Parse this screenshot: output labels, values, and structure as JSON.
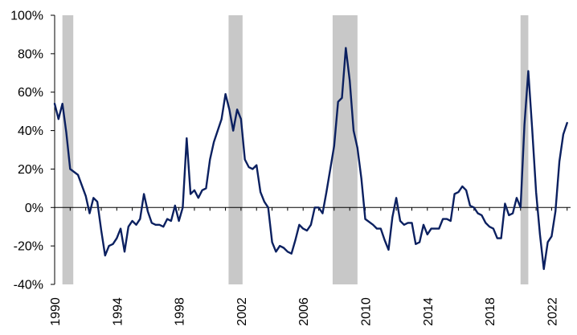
{
  "chart_data": {
    "type": "line",
    "title": "",
    "xlabel": "",
    "ylabel": "",
    "xlim": [
      1990,
      2023.5
    ],
    "ylim": [
      -40,
      100
    ],
    "grid": false,
    "legend": "none",
    "line_color": "#0b2060",
    "shade_color": "#c8c8c8",
    "y_ticks": [
      {
        "value": -40,
        "label": "-40%"
      },
      {
        "value": -20,
        "label": "-20%"
      },
      {
        "value": 0,
        "label": "0%"
      },
      {
        "value": 20,
        "label": "20%"
      },
      {
        "value": 40,
        "label": "40%"
      },
      {
        "value": 60,
        "label": "60%"
      },
      {
        "value": 80,
        "label": "80%"
      },
      {
        "value": 100,
        "label": "100%"
      }
    ],
    "x_ticks": [
      {
        "value": 1990,
        "label": "1990"
      },
      {
        "value": 1994,
        "label": "1994"
      },
      {
        "value": 1998,
        "label": "1998"
      },
      {
        "value": 2002,
        "label": "2002"
      },
      {
        "value": 2006,
        "label": "2006"
      },
      {
        "value": 2010,
        "label": "2010"
      },
      {
        "value": 2014,
        "label": "2014"
      },
      {
        "value": 2018,
        "label": "2018"
      },
      {
        "value": 2022,
        "label": "2022"
      }
    ],
    "shaded_periods": [
      [
        1990.5,
        1991.2
      ],
      [
        2001.2,
        2002.1
      ],
      [
        2007.9,
        2009.5
      ],
      [
        2020.0,
        2020.5
      ]
    ],
    "x": [
      1990.0,
      1990.25,
      1990.5,
      1990.75,
      1991.0,
      1991.5,
      1992.0,
      1992.25,
      1992.5,
      1992.75,
      1993.0,
      1993.25,
      1993.5,
      1993.75,
      1994.0,
      1994.25,
      1994.5,
      1994.75,
      1995.0,
      1995.25,
      1995.5,
      1995.75,
      1996.0,
      1996.25,
      1996.5,
      1996.75,
      1997.0,
      1997.25,
      1997.5,
      1997.75,
      1998.0,
      1998.25,
      1998.5,
      1998.75,
      1999.0,
      1999.25,
      1999.5,
      1999.75,
      2000.0,
      2000.25,
      2000.75,
      2001.0,
      2001.25,
      2001.5,
      2001.75,
      2002.0,
      2002.25,
      2002.5,
      2002.75,
      2003.0,
      2003.25,
      2003.5,
      2003.75,
      2004.0,
      2004.25,
      2004.5,
      2004.75,
      2005.0,
      2005.25,
      2005.5,
      2005.75,
      2006.0,
      2006.25,
      2006.5,
      2006.75,
      2007.0,
      2007.25,
      2007.5,
      2007.75,
      2008.0,
      2008.25,
      2008.5,
      2008.75,
      2009.0,
      2009.25,
      2009.5,
      2009.75,
      2010.0,
      2010.5,
      2010.75,
      2011.0,
      2011.25,
      2011.5,
      2011.75,
      2012.0,
      2012.25,
      2012.5,
      2012.75,
      2013.0,
      2013.25,
      2013.5,
      2013.75,
      2014.0,
      2014.25,
      2014.5,
      2014.75,
      2015.0,
      2015.25,
      2015.5,
      2015.75,
      2016.0,
      2016.25,
      2016.5,
      2016.75,
      2017.0,
      2017.25,
      2017.5,
      2017.75,
      2018.0,
      2018.25,
      2018.5,
      2018.75,
      2019.0,
      2019.25,
      2019.5,
      2019.75,
      2020.0,
      2020.25,
      2020.5,
      2020.75,
      2021.0,
      2021.25,
      2021.5,
      2021.75,
      2022.0,
      2022.25,
      2022.5,
      2022.75,
      2023.0
    ],
    "series": [
      {
        "values": [
          54,
          46,
          54,
          39,
          20,
          17,
          6,
          -3,
          5,
          3,
          -12,
          -25,
          -20,
          -19,
          -16,
          -11,
          -23,
          -10,
          -7,
          -9,
          -6,
          7,
          -2,
          -8,
          -9,
          -9,
          -10,
          -6,
          -7,
          1,
          -7,
          0,
          36,
          7,
          9,
          5,
          9,
          10,
          25,
          34,
          46,
          59,
          51,
          40,
          51,
          46,
          25,
          21,
          20,
          22,
          8,
          3,
          0,
          -18,
          -23,
          -20,
          -21,
          -23,
          -24,
          -17,
          -9,
          -11,
          -12,
          -9,
          0,
          0,
          -3,
          8,
          20,
          32,
          55,
          57,
          83,
          66,
          40,
          31,
          15,
          -6,
          -9,
          -11,
          -11,
          -17,
          -22,
          -5,
          5,
          -7,
          -9,
          -8,
          -8,
          -19,
          -18,
          -9,
          -14,
          -11,
          -11,
          -11,
          -6,
          -6,
          -7,
          7,
          8,
          11,
          9,
          1,
          0,
          -3,
          -4,
          -8,
          -10,
          -11,
          -16,
          -16,
          2,
          -4,
          -3,
          5,
          0,
          43,
          71,
          41,
          8,
          -14,
          -32,
          -18,
          -15,
          -2,
          24,
          38,
          44
        ]
      }
    ]
  }
}
